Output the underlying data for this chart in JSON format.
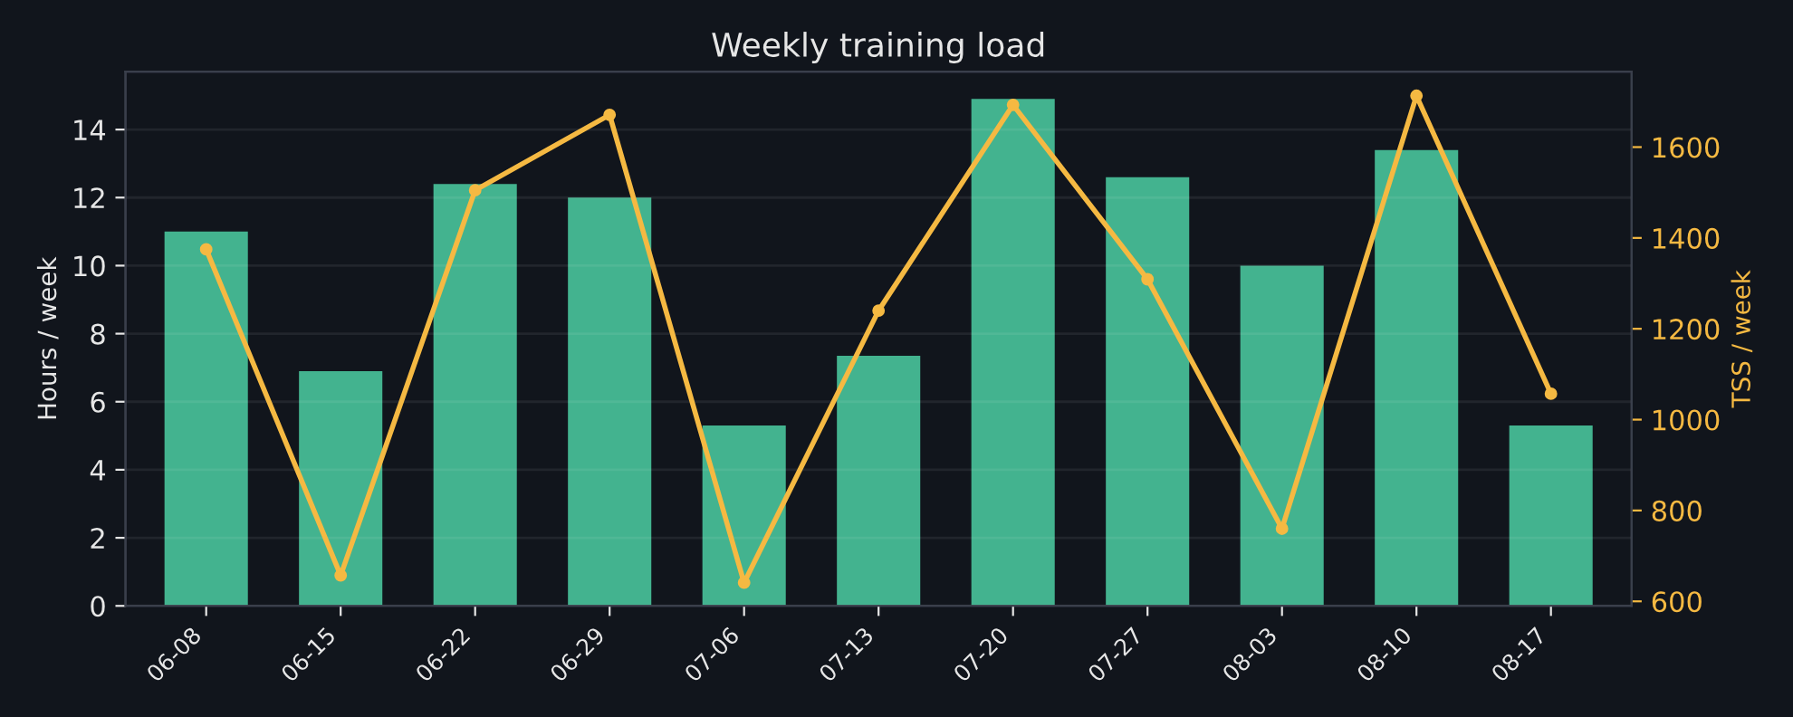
{
  "chart_data": {
    "type": "bar",
    "title": "Weekly training load",
    "categories": [
      "06-08",
      "06-15",
      "06-22",
      "06-29",
      "07-06",
      "07-13",
      "07-20",
      "07-27",
      "08-03",
      "08-10",
      "08-17"
    ],
    "series": [
      {
        "color": "#43b38f",
        "values": [
          11.0,
          6.9,
          12.4,
          12.0,
          5.3,
          7.35,
          14.9,
          12.6,
          10.0,
          13.4,
          5.3
        ]
      },
      {
        "type": "line",
        "axis": "y2",
        "color": "#f5b942",
        "marker": "circle",
        "values": [
          1375,
          657,
          1505,
          1671,
          641,
          1240,
          1693,
          1309,
          760,
          1713,
          1057
        ]
      }
    ],
    "ylabel": "Hours / week",
    "y2label": "TSS / week",
    "ylim": [
      0,
      15.7
    ],
    "yticks": [
      0,
      2,
      4,
      6,
      8,
      10,
      12,
      14
    ],
    "y2lim": [
      590,
      1766
    ],
    "y2ticks": [
      600,
      800,
      1000,
      1200,
      1400,
      1600
    ],
    "grid": "y",
    "legend": false
  }
}
